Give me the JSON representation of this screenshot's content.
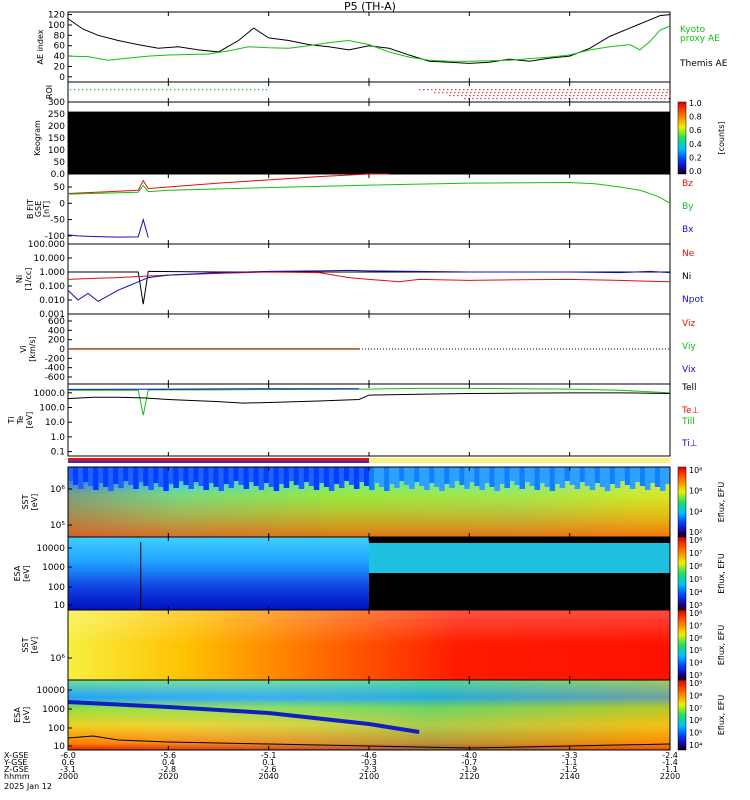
{
  "title": "P5 (TH-A)",
  "date_label": "2025 Jan 12",
  "colors": {
    "black": "#000000",
    "green": "#10c010",
    "red": "#e01010",
    "blue": "#1010c0"
  },
  "chart_data": [
    {
      "id": "ae",
      "type": "line",
      "ylabel": "AE index",
      "yticks": [
        "120",
        "100",
        "80",
        "60",
        "40",
        "20",
        "0"
      ],
      "ylim": [
        -10,
        125
      ],
      "legend": [
        "Kyoto",
        "proxy AE",
        "Themis AE"
      ],
      "series": [
        {
          "name": "Themis AE",
          "color": "#000000",
          "x": [
            0,
            3,
            6,
            10,
            14,
            18,
            22,
            26,
            30,
            34,
            37,
            40,
            44,
            48,
            52,
            56,
            60,
            64,
            68,
            72,
            76,
            80,
            84,
            88,
            92,
            96,
            100,
            104,
            108,
            112,
            116,
            118,
            120
          ],
          "values": [
            112,
            92,
            80,
            70,
            62,
            55,
            58,
            52,
            48,
            70,
            94,
            75,
            70,
            62,
            58,
            52,
            60,
            55,
            42,
            30,
            28,
            26,
            28,
            34,
            30,
            36,
            40,
            55,
            78,
            94,
            110,
            118,
            120
          ]
        },
        {
          "name": "Kyoto proxy AE",
          "color": "#10c010",
          "x": [
            0,
            4,
            8,
            12,
            16,
            20,
            24,
            28,
            32,
            36,
            40,
            44,
            48,
            52,
            56,
            60,
            64,
            68,
            72,
            76,
            80,
            84,
            88,
            92,
            96,
            100,
            104,
            108,
            112,
            114,
            116,
            118,
            120
          ],
          "values": [
            40,
            39,
            32,
            36,
            40,
            42,
            43,
            44,
            50,
            58,
            56,
            55,
            60,
            66,
            70,
            62,
            48,
            38,
            32,
            30,
            30,
            31,
            32,
            35,
            38,
            42,
            52,
            58,
            62,
            52,
            68,
            90,
            98
          ]
        }
      ]
    },
    {
      "id": "roi",
      "type": "scatter",
      "ylabel": "ROI",
      "green_dots_until": 40,
      "red_dots_from": 70
    },
    {
      "id": "keogram",
      "type": "heatmap",
      "ylabel": "Keogram",
      "yticks": [
        "300",
        "250",
        "200",
        "150",
        "100",
        "50",
        "0.0"
      ],
      "ylim": [
        0,
        300
      ],
      "colorbar_label": "[counts]",
      "colorbar_ticks": [
        "1.0",
        "0.8",
        "0.6",
        "0.4",
        "0.2",
        "0.0"
      ],
      "fill": "black",
      "fill_range": [
        0,
        260
      ]
    },
    {
      "id": "bfit",
      "type": "line",
      "ylabel": "B FIT",
      "ylabel2": "GSE",
      "ylabel3": "[nT]",
      "yticks": [
        "50",
        "0",
        "-50",
        "-100"
      ],
      "ylim": [
        -125,
        90
      ],
      "legend": [
        "Bz",
        "By",
        "Bx"
      ],
      "series": [
        {
          "name": "Bz",
          "color": "#e01010",
          "x": [
            0,
            10,
            14,
            15,
            16,
            20,
            30,
            40,
            50,
            60,
            64
          ],
          "values": [
            30,
            37,
            40,
            70,
            45,
            50,
            62,
            72,
            82,
            92,
            96
          ]
        },
        {
          "name": "By",
          "color": "#10c010",
          "x": [
            0,
            14,
            15,
            16,
            20,
            40,
            60,
            80,
            100,
            105,
            110,
            114,
            116,
            118,
            120
          ],
          "values": [
            28,
            34,
            55,
            36,
            40,
            48,
            56,
            62,
            64,
            60,
            50,
            40,
            30,
            18,
            0
          ]
        },
        {
          "name": "Bx",
          "color": "#1010c0",
          "x": [
            0,
            2,
            5,
            10,
            14,
            15,
            16
          ],
          "values": [
            -97,
            -100,
            -102,
            -104,
            -103,
            -50,
            -105
          ]
        }
      ]
    },
    {
      "id": "ni",
      "type": "line",
      "log": true,
      "ylabel": "Ni",
      "ylabel2": "[1/cc]",
      "yticks": [
        "100.000",
        "10.000",
        "1.000",
        "0.100",
        "0.010",
        "0.001"
      ],
      "ylim": [
        -3,
        2
      ],
      "legend": [
        "Ne",
        "Ni",
        "Npot"
      ],
      "series": [
        {
          "name": "Ni",
          "color": "#000000",
          "x": [
            0,
            10,
            14,
            15,
            16,
            30,
            50,
            60,
            70,
            80,
            90,
            100,
            110,
            120
          ],
          "values": [
            1.0,
            1.0,
            1.0,
            0.005,
            1.1,
            1.0,
            1.0,
            1.0,
            1.0,
            1.0,
            1.0,
            1.0,
            1.0,
            1.0
          ]
        },
        {
          "name": "Ne",
          "color": "#e01010",
          "x": [
            0,
            5,
            10,
            15,
            20,
            30,
            40,
            50,
            56,
            60,
            66,
            70,
            80,
            90,
            100,
            110,
            120
          ],
          "values": [
            0.3,
            0.35,
            0.4,
            0.5,
            0.6,
            0.8,
            1.0,
            0.9,
            0.4,
            0.3,
            0.2,
            0.3,
            0.25,
            0.28,
            0.3,
            0.25,
            0.2
          ]
        },
        {
          "name": "Npot",
          "color": "#1010c0",
          "x": [
            0,
            2,
            4,
            6,
            8,
            10,
            12,
            14,
            16,
            20,
            30,
            40,
            50,
            56,
            60,
            70,
            80,
            90,
            100,
            110,
            116,
            120
          ],
          "values": [
            0.05,
            0.01,
            0.03,
            0.008,
            0.02,
            0.05,
            0.1,
            0.2,
            0.4,
            0.6,
            0.9,
            1.1,
            1.2,
            1.3,
            1.2,
            1.1,
            1.0,
            1.0,
            1.0,
            0.9,
            1.1,
            0.9
          ]
        }
      ]
    },
    {
      "id": "vi",
      "type": "line",
      "ylabel": "Vi",
      "ylabel2": "[km/s]",
      "yticks": [
        "600",
        "400",
        "200",
        "0",
        "-200",
        "-400",
        "-600"
      ],
      "ylim": [
        -750,
        750
      ],
      "legend": [
        "Viz",
        "Viy",
        "Vix"
      ],
      "series": [
        {
          "name": "Vix",
          "color": "#1010c0",
          "x": [
            0,
            58
          ],
          "values": [
            0,
            0
          ]
        },
        {
          "name": "Viy",
          "color": "#10c010",
          "x": [
            0,
            58
          ],
          "values": [
            -5,
            -5
          ]
        },
        {
          "name": "Viz",
          "color": "#e01010",
          "x": [
            0,
            58
          ],
          "values": [
            5,
            5
          ]
        }
      ]
    },
    {
      "id": "ti",
      "type": "line",
      "log": true,
      "ylabel": "Ti",
      "ylabel2": "Te",
      "ylabel3": "[eV]",
      "yticks": [
        "1000.0",
        "100.0",
        "10.0",
        "1.0",
        "0.1"
      ],
      "ylim": [
        -1.3,
        3.6
      ],
      "legend": [
        "Tell",
        "Te⊥",
        "Till",
        "Ti⊥"
      ],
      "series": [
        {
          "name": "Tell",
          "color": "#10c010",
          "x": [
            0,
            14,
            15,
            16,
            30,
            50,
            60,
            70,
            80,
            90,
            100,
            110,
            120
          ],
          "values": [
            1500,
            1500,
            30,
            1600,
            1600,
            1700,
            1800,
            2000,
            2000,
            1900,
            1800,
            1500,
            1000
          ]
        },
        {
          "name": "Ti",
          "color": "#000000",
          "x": [
            0,
            5,
            10,
            15,
            20,
            30,
            35,
            40,
            50,
            58,
            60,
            70,
            80,
            90,
            100,
            110,
            120
          ],
          "values": [
            400,
            500,
            500,
            450,
            350,
            250,
            200,
            220,
            280,
            350,
            700,
            800,
            900,
            950,
            1000,
            1000,
            900
          ]
        },
        {
          "name": "Till",
          "color": "#1010c0",
          "x": [
            0,
            20,
            40,
            58
          ],
          "values": [
            1700,
            1800,
            1900,
            1900
          ]
        }
      ]
    },
    {
      "id": "sst_eflux_top",
      "type": "heatmap",
      "ylabel": "SST",
      "ylabel2": "[eV]",
      "yticks": [
        "10⁶",
        "10⁵"
      ],
      "colorbar_label": "Eflux, EFU",
      "colorbar_ticks": [
        "10⁸",
        "10⁶",
        "10⁴",
        "10²"
      ]
    },
    {
      "id": "esa_eflux_top",
      "type": "heatmap",
      "ylabel": "ESA",
      "ylabel2": "[eV]",
      "yticks": [
        "10000",
        "1000",
        "100",
        "10"
      ],
      "colorbar_label": "Eflux, EFU",
      "colorbar_ticks": [
        "10⁸",
        "10⁷",
        "10⁶",
        "10⁵",
        "10⁴",
        "10³"
      ]
    },
    {
      "id": "sst_eflux_bottom",
      "type": "heatmap",
      "ylabel": "SST",
      "ylabel2": "[eV]",
      "yticks": [
        "10⁶"
      ],
      "colorbar_label": "Eflux, EFU",
      "colorbar_ticks": [
        "10⁸",
        "10⁷",
        "10⁶",
        "10⁵",
        "10⁴",
        "10³"
      ]
    },
    {
      "id": "esa_eflux_bottom",
      "type": "heatmap",
      "ylabel": "ESA",
      "ylabel2": "[eV]",
      "yticks": [
        "10000",
        "1000",
        "100",
        "10"
      ],
      "colorbar_label": "Eflux, EFU",
      "colorbar_ticks": [
        "10⁹",
        "10⁸",
        "10⁷",
        "10⁶",
        "10⁵",
        "10⁴"
      ]
    }
  ],
  "xaxis": {
    "row_labels": [
      "X-GSE",
      "Y-GSE",
      "Z-GSE",
      "hhmm",
      "2025 Jan 12"
    ],
    "ticks": [
      {
        "t": 0,
        "x": "-6.0",
        "y": "0.6",
        "z": "-3.1",
        "hhmm": "2000"
      },
      {
        "t": 20,
        "x": "-5.6",
        "y": "0.4",
        "z": "-2.8",
        "hhmm": "2020"
      },
      {
        "t": 40,
        "x": "-5.1",
        "y": "0.1",
        "z": "-2.6",
        "hhmm": "2040"
      },
      {
        "t": 60,
        "x": "-4.6",
        "y": "-0.3",
        "z": "-2.3",
        "hhmm": "2100"
      },
      {
        "t": 80,
        "x": "-4.0",
        "y": "-0.7",
        "z": "-1.9",
        "hhmm": "2120"
      },
      {
        "t": 100,
        "x": "-3.3",
        "y": "-1.1",
        "z": "-1.5",
        "hhmm": "2140"
      },
      {
        "t": 120,
        "x": "-2.4",
        "y": "-1.4",
        "z": "-1.1",
        "hhmm": "2200"
      }
    ]
  }
}
